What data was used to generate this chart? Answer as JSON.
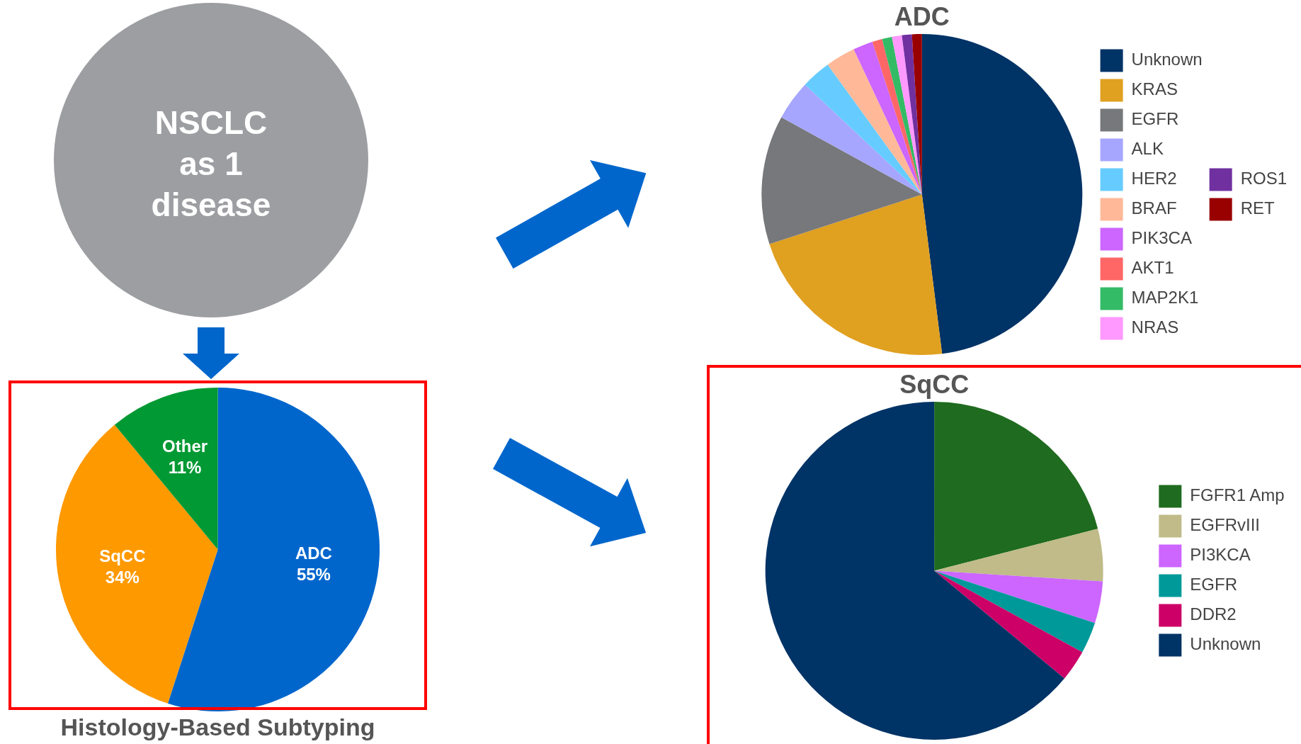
{
  "chart_data": [
    {
      "type": "other",
      "title": "NSCLC as 1 disease"
    },
    {
      "type": "pie",
      "title": "Histology-Based Subtyping",
      "categories": [
        "ADC",
        "SqCC",
        "Other"
      ],
      "values": [
        55,
        34,
        11
      ],
      "colors": [
        "#0066cc",
        "#ff9900",
        "#009933"
      ],
      "value_labels": [
        "55%",
        "34%",
        "11%"
      ],
      "legend": false
    },
    {
      "type": "pie",
      "title": "ADC",
      "categories": [
        "Unknown",
        "KRAS",
        "EGFR",
        "ALK",
        "HER2",
        "BRAF",
        "PIK3CA",
        "AKT1",
        "MAP2K1",
        "NRAS",
        "ROS1",
        "RET"
      ],
      "values": [
        48,
        22,
        13,
        4,
        3,
        3,
        2,
        1,
        1,
        1,
        1,
        1
      ],
      "colors": [
        "#003366",
        "#e0a020",
        "#77787b",
        "#a6a6ff",
        "#66ccff",
        "#ffb999",
        "#cc66ff",
        "#ff6666",
        "#33bb66",
        "#ff99ff",
        "#7030a0",
        "#990000"
      ],
      "legend": "right"
    },
    {
      "type": "pie",
      "title": "SqCC",
      "categories": [
        "FGFR1 Amp",
        "EGFRvIII",
        "PI3KCA",
        "EGFR",
        "DDR2",
        "Unknown"
      ],
      "values": [
        21,
        5,
        4,
        3,
        3,
        64
      ],
      "colors": [
        "#1f6b1f",
        "#c0bb88",
        "#cc66ff",
        "#009999",
        "#cc0066",
        "#003366"
      ],
      "legend": "right"
    }
  ]
}
